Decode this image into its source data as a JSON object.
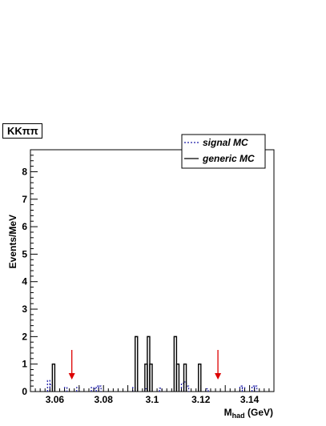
{
  "chart_data": {
    "type": "histogram",
    "title": "KKππ",
    "xlabel_main": "M",
    "xlabel_sub": "had",
    "xlabel_unit": " (GeV)",
    "ylabel": "Events/MeV",
    "xlim": [
      3.05,
      3.15
    ],
    "ylim": [
      0,
      8.8
    ],
    "bin_width": 0.001,
    "x_ticks": [
      {
        "value": 3.06,
        "label": "3.06"
      },
      {
        "value": 3.08,
        "label": "3.08"
      },
      {
        "value": 3.1,
        "label": "3.1"
      },
      {
        "value": 3.12,
        "label": "3.12"
      },
      {
        "value": 3.14,
        "label": "3.14"
      }
    ],
    "y_ticks": [
      {
        "value": 0,
        "label": "0"
      },
      {
        "value": 1,
        "label": "1"
      },
      {
        "value": 2,
        "label": "2"
      },
      {
        "value": 3,
        "label": "3"
      },
      {
        "value": 4,
        "label": "4"
      },
      {
        "value": 5,
        "label": "5"
      },
      {
        "value": 6,
        "label": "6"
      },
      {
        "value": 7,
        "label": "7"
      },
      {
        "value": 8,
        "label": "8"
      }
    ],
    "series": [
      {
        "name": "signal MC",
        "style": "dashed",
        "color": "#1a1aa6",
        "bins": [
          {
            "x": 3.057,
            "y": 0.4
          },
          {
            "x": 3.058,
            "y": 0.25
          },
          {
            "x": 3.064,
            "y": 0.15
          },
          {
            "x": 3.069,
            "y": 0.15
          },
          {
            "x": 3.075,
            "y": 0.15
          },
          {
            "x": 3.076,
            "y": 0.1
          },
          {
            "x": 3.077,
            "y": 0.2
          },
          {
            "x": 3.078,
            "y": 0.2
          },
          {
            "x": 3.092,
            "y": 0.15
          },
          {
            "x": 3.097,
            "y": 0.1
          },
          {
            "x": 3.103,
            "y": 0.12
          },
          {
            "x": 3.112,
            "y": 0.3
          },
          {
            "x": 3.113,
            "y": 0.35
          },
          {
            "x": 3.114,
            "y": 0.2
          },
          {
            "x": 3.122,
            "y": 0.1
          },
          {
            "x": 3.136,
            "y": 0.2
          },
          {
            "x": 3.137,
            "y": 0.15
          },
          {
            "x": 3.141,
            "y": 0.2
          },
          {
            "x": 3.142,
            "y": 0.2
          }
        ]
      },
      {
        "name": "generic MC",
        "style": "solid",
        "color": "#000000",
        "bins": [
          {
            "x": 3.059,
            "y": 1
          },
          {
            "x": 3.093,
            "y": 2
          },
          {
            "x": 3.097,
            "y": 1
          },
          {
            "x": 3.098,
            "y": 2
          },
          {
            "x": 3.099,
            "y": 1
          },
          {
            "x": 3.109,
            "y": 2
          },
          {
            "x": 3.11,
            "y": 1
          },
          {
            "x": 3.113,
            "y": 1
          },
          {
            "x": 3.119,
            "y": 1
          }
        ]
      }
    ],
    "arrows": [
      {
        "x": 3.067,
        "color": "#dd0000"
      },
      {
        "x": 3.127,
        "color": "#dd0000"
      }
    ],
    "legend": {
      "position": "top-right"
    }
  }
}
